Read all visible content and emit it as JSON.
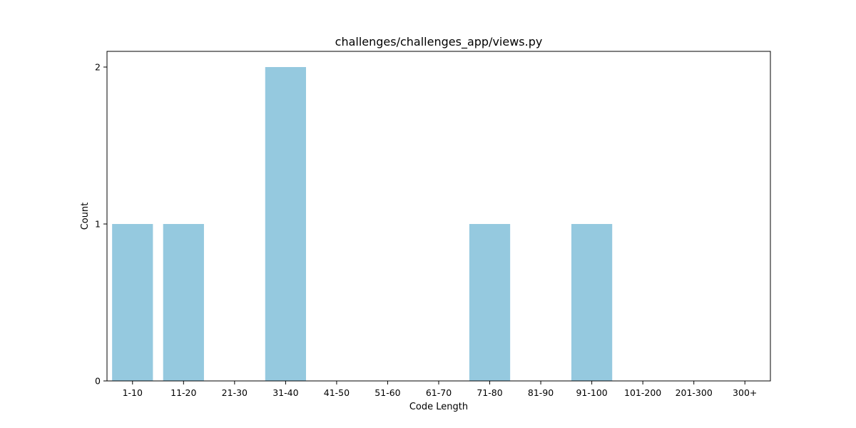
{
  "chart_data": {
    "type": "bar",
    "title": "challenges/challenges_app/views.py",
    "xlabel": "Code Length",
    "ylabel": "Count",
    "categories": [
      "1-10",
      "11-20",
      "21-30",
      "31-40",
      "41-50",
      "51-60",
      "61-70",
      "71-80",
      "81-90",
      "91-100",
      "101-200",
      "201-300",
      "300+"
    ],
    "values": [
      1,
      1,
      0,
      2,
      0,
      0,
      0,
      1,
      0,
      1,
      0,
      0,
      0
    ],
    "ylim": [
      0,
      2.1
    ],
    "yticks": [
      0,
      1,
      2
    ],
    "bar_color": "#95c9df",
    "grid": false,
    "legend": "none"
  }
}
